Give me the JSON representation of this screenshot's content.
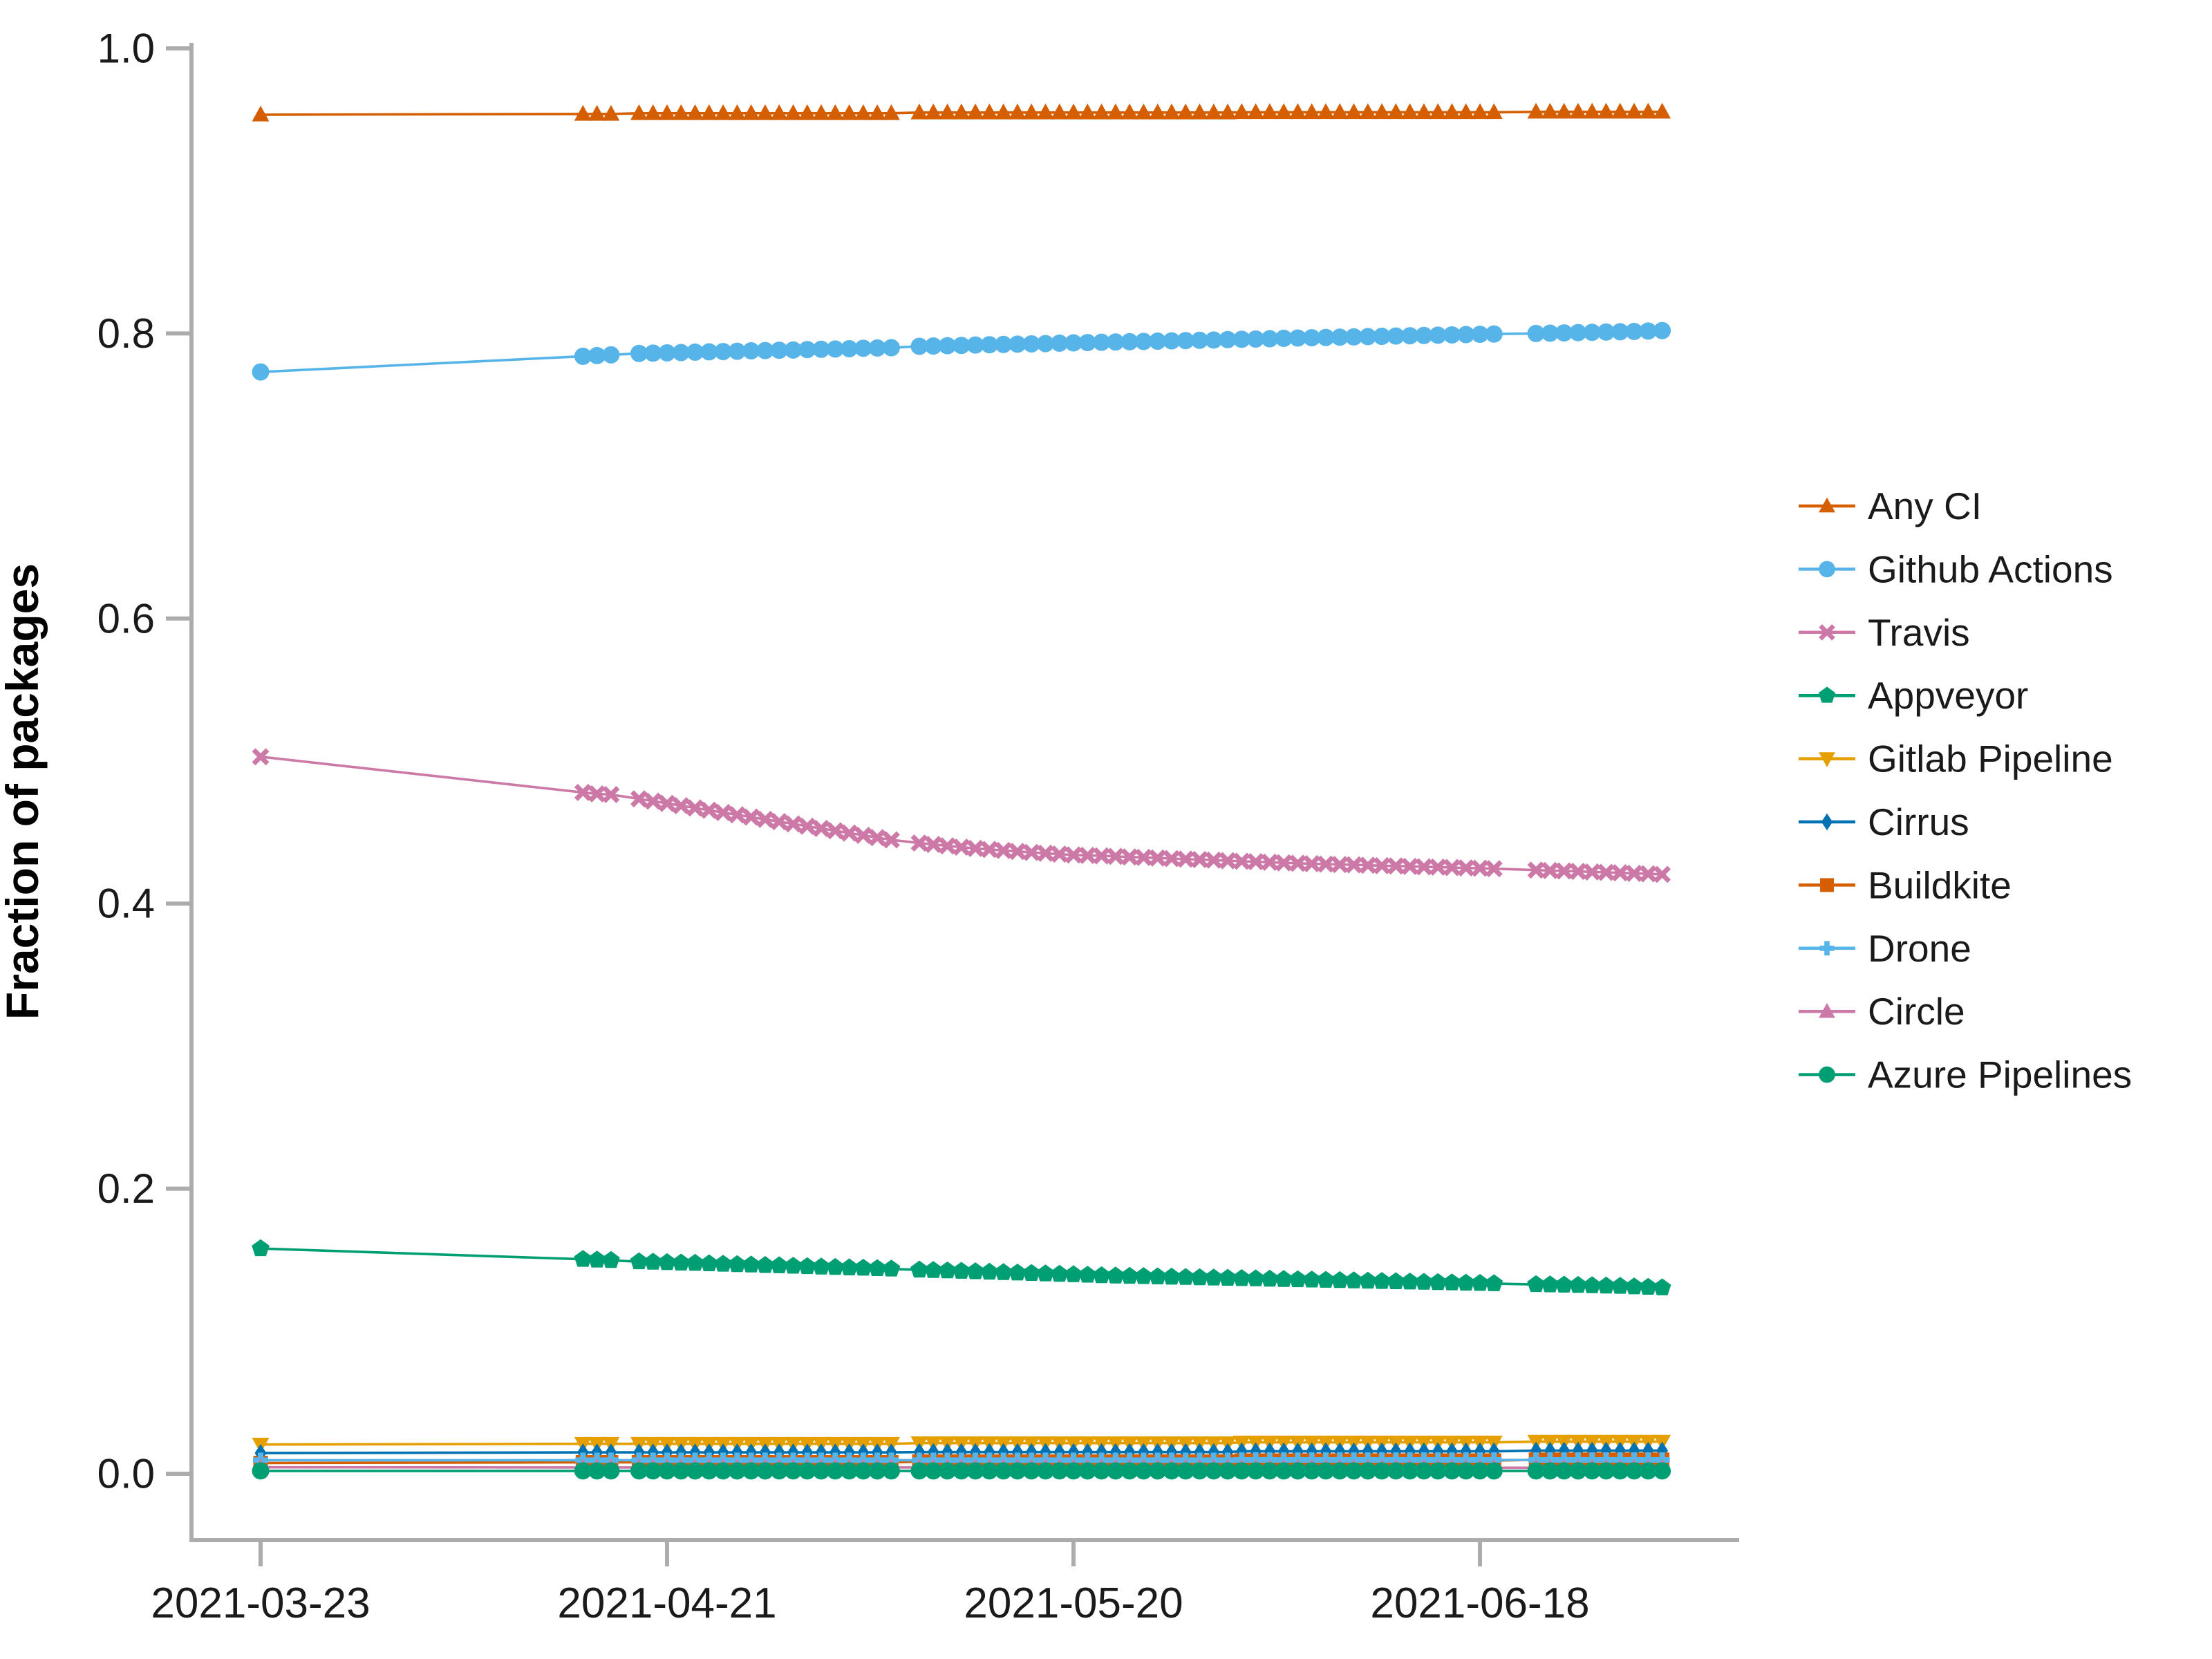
{
  "figure": {
    "background": "#ffffff",
    "axis_color": "#acacac",
    "text_color": "#1a1a1a"
  },
  "chart_data": {
    "type": "line",
    "title": "",
    "xlabel": "",
    "ylabel": "Fraction of packages",
    "ylim": [
      0.0,
      1.0
    ],
    "grid": false,
    "legend_position": "right",
    "yticks": [
      0.0,
      0.2,
      0.4,
      0.6,
      0.8,
      1.0
    ],
    "ytick_labels": [
      "0.0",
      "0.2",
      "0.4",
      "0.6",
      "0.8",
      "1.0"
    ],
    "xtick_dates": [
      "2021-03-23",
      "2021-04-21",
      "2021-05-20",
      "2021-06-18"
    ],
    "dates": [
      "2021-03-23",
      "2021-04-15",
      "2021-04-16",
      "2021-04-17",
      "2021-04-19",
      "2021-04-20",
      "2021-04-21",
      "2021-04-22",
      "2021-04-23",
      "2021-04-24",
      "2021-04-25",
      "2021-04-26",
      "2021-04-27",
      "2021-04-28",
      "2021-04-29",
      "2021-04-30",
      "2021-05-01",
      "2021-05-02",
      "2021-05-03",
      "2021-05-04",
      "2021-05-05",
      "2021-05-06",
      "2021-05-07",
      "2021-05-09",
      "2021-05-10",
      "2021-05-11",
      "2021-05-12",
      "2021-05-13",
      "2021-05-14",
      "2021-05-15",
      "2021-05-16",
      "2021-05-17",
      "2021-05-18",
      "2021-05-19",
      "2021-05-20",
      "2021-05-21",
      "2021-05-22",
      "2021-05-23",
      "2021-05-24",
      "2021-05-25",
      "2021-05-26",
      "2021-05-27",
      "2021-05-28",
      "2021-05-29",
      "2021-05-30",
      "2021-05-31",
      "2021-06-01",
      "2021-06-02",
      "2021-06-03",
      "2021-06-04",
      "2021-06-05",
      "2021-06-06",
      "2021-06-07",
      "2021-06-08",
      "2021-06-09",
      "2021-06-10",
      "2021-06-11",
      "2021-06-12",
      "2021-06-13",
      "2021-06-14",
      "2021-06-15",
      "2021-06-16",
      "2021-06-17",
      "2021-06-18",
      "2021-06-19",
      "2021-06-22",
      "2021-06-23",
      "2021-06-24",
      "2021-06-25",
      "2021-06-26",
      "2021-06-27",
      "2021-06-28",
      "2021-06-29",
      "2021-06-30",
      "2021-07-01"
    ],
    "series": [
      {
        "name": "Any CI",
        "color": "#D55E00",
        "marker": "triangle-up",
        "values": [
          0.9535,
          0.954,
          0.954,
          0.954,
          0.9545,
          0.9545,
          0.9545,
          0.9545,
          0.9545,
          0.9545,
          0.9545,
          0.9545,
          0.9545,
          0.9545,
          0.9545,
          0.9545,
          0.9545,
          0.9545,
          0.9545,
          0.9545,
          0.9545,
          0.9545,
          0.9545,
          0.955,
          0.955,
          0.955,
          0.955,
          0.955,
          0.955,
          0.955,
          0.955,
          0.955,
          0.955,
          0.955,
          0.955,
          0.955,
          0.955,
          0.955,
          0.955,
          0.955,
          0.955,
          0.955,
          0.955,
          0.955,
          0.955,
          0.955,
          0.9552,
          0.9552,
          0.9552,
          0.9552,
          0.9552,
          0.9552,
          0.9552,
          0.9552,
          0.9552,
          0.9552,
          0.9552,
          0.9552,
          0.9552,
          0.9552,
          0.9552,
          0.9552,
          0.9552,
          0.9552,
          0.9552,
          0.9555,
          0.9555,
          0.9555,
          0.9555,
          0.9555,
          0.9555,
          0.9555,
          0.9555,
          0.9555,
          0.9555
        ]
      },
      {
        "name": "Github Actions",
        "color": "#56B4E9",
        "marker": "circle",
        "values": [
          0.773,
          0.784,
          0.7845,
          0.785,
          0.786,
          0.7862,
          0.7864,
          0.7866,
          0.7869,
          0.7871,
          0.7873,
          0.7875,
          0.7878,
          0.788,
          0.7882,
          0.7884,
          0.7887,
          0.7889,
          0.7891,
          0.7893,
          0.7896,
          0.7898,
          0.79,
          0.791,
          0.7912,
          0.7914,
          0.7916,
          0.7919,
          0.7921,
          0.7923,
          0.7925,
          0.7927,
          0.7929,
          0.7932,
          0.7934,
          0.7936,
          0.7938,
          0.794,
          0.7942,
          0.7944,
          0.7946,
          0.7948,
          0.795,
          0.7952,
          0.7954,
          0.7957,
          0.7959,
          0.7961,
          0.7963,
          0.7966,
          0.7968,
          0.797,
          0.7972,
          0.7974,
          0.7976,
          0.7978,
          0.798,
          0.7982,
          0.7984,
          0.7986,
          0.7988,
          0.799,
          0.7992,
          0.7994,
          0.7996,
          0.8,
          0.8002,
          0.8004,
          0.8006,
          0.8008,
          0.801,
          0.8012,
          0.8014,
          0.8017,
          0.802
        ]
      },
      {
        "name": "Travis",
        "color": "#CC79A7",
        "marker": "x",
        "values": [
          0.503,
          0.478,
          0.477,
          0.4765,
          0.4735,
          0.4719,
          0.4703,
          0.4687,
          0.4671,
          0.4655,
          0.4639,
          0.4623,
          0.4607,
          0.4591,
          0.4575,
          0.4559,
          0.4543,
          0.4527,
          0.4511,
          0.4495,
          0.4479,
          0.4463,
          0.4447,
          0.4425,
          0.4415,
          0.4405,
          0.4396,
          0.4387,
          0.438,
          0.4373,
          0.4366,
          0.4359,
          0.4353,
          0.4347,
          0.4341,
          0.4338,
          0.4335,
          0.4331,
          0.4327,
          0.4324,
          0.432,
          0.4316,
          0.4312,
          0.4309,
          0.4305,
          0.4301,
          0.4297,
          0.4294,
          0.429,
          0.4286,
          0.4283,
          0.428,
          0.4277,
          0.4274,
          0.4272,
          0.4269,
          0.4266,
          0.4264,
          0.4261,
          0.4258,
          0.4256,
          0.4253,
          0.425,
          0.4248,
          0.4245,
          0.4235,
          0.4232,
          0.4229,
          0.4226,
          0.4222,
          0.4219,
          0.4216,
          0.4212,
          0.4209,
          0.4205
        ]
      },
      {
        "name": "Appveyor",
        "color": "#009E73",
        "marker": "pentagon",
        "values": [
          0.158,
          0.1505,
          0.15,
          0.1497,
          0.1488,
          0.1485,
          0.1482,
          0.1479,
          0.1477,
          0.1474,
          0.1471,
          0.1468,
          0.1465,
          0.1462,
          0.146,
          0.1457,
          0.1454,
          0.1451,
          0.1448,
          0.1445,
          0.1443,
          0.144,
          0.1437,
          0.143,
          0.1427,
          0.1424,
          0.1421,
          0.1418,
          0.1415,
          0.1412,
          0.1409,
          0.1406,
          0.1403,
          0.14,
          0.1397,
          0.1394,
          0.139,
          0.1388,
          0.1386,
          0.1384,
          0.1382,
          0.138,
          0.1378,
          0.1376,
          0.1374,
          0.1372,
          0.137,
          0.1368,
          0.1366,
          0.1364,
          0.1362,
          0.136,
          0.1358,
          0.1356,
          0.1354,
          0.1352,
          0.135,
          0.1348,
          0.1346,
          0.1344,
          0.1342,
          0.134,
          0.1338,
          0.1336,
          0.1334,
          0.1328,
          0.1326,
          0.1324,
          0.1322,
          0.132,
          0.1318,
          0.1316,
          0.1312,
          0.1309,
          0.1305
        ]
      },
      {
        "name": "Gitlab Pipeline",
        "color": "#E69F00",
        "marker": "triangle-down",
        "values": [
          0.0205,
          0.021,
          0.021,
          0.021,
          0.021,
          0.021,
          0.021,
          0.021,
          0.021,
          0.021,
          0.021,
          0.021,
          0.021,
          0.021,
          0.021,
          0.021,
          0.021,
          0.021,
          0.021,
          0.021,
          0.021,
          0.021,
          0.021,
          0.0215,
          0.0215,
          0.0215,
          0.0215,
          0.0215,
          0.0215,
          0.0215,
          0.0215,
          0.0215,
          0.0215,
          0.0215,
          0.0215,
          0.0215,
          0.0215,
          0.0215,
          0.0215,
          0.0215,
          0.0215,
          0.0215,
          0.0215,
          0.0215,
          0.0215,
          0.0215,
          0.022,
          0.022,
          0.022,
          0.022,
          0.022,
          0.022,
          0.022,
          0.022,
          0.022,
          0.022,
          0.022,
          0.022,
          0.022,
          0.022,
          0.022,
          0.022,
          0.022,
          0.022,
          0.022,
          0.0225,
          0.0225,
          0.0225,
          0.0225,
          0.0225,
          0.0225,
          0.0225,
          0.0225,
          0.0225,
          0.0225
        ]
      },
      {
        "name": "Cirrus",
        "color": "#0072B2",
        "marker": "diamond",
        "values": [
          0.0145,
          0.015,
          0.015,
          0.015,
          0.015,
          0.015,
          0.015,
          0.015,
          0.015,
          0.015,
          0.015,
          0.015,
          0.015,
          0.015,
          0.015,
          0.015,
          0.015,
          0.015,
          0.015,
          0.015,
          0.015,
          0.015,
          0.015,
          0.0152,
          0.0152,
          0.0152,
          0.0152,
          0.0152,
          0.0152,
          0.0152,
          0.0152,
          0.0152,
          0.0152,
          0.0152,
          0.0152,
          0.0152,
          0.0152,
          0.0152,
          0.0152,
          0.0152,
          0.0152,
          0.0152,
          0.0152,
          0.0152,
          0.0152,
          0.0152,
          0.0157,
          0.0157,
          0.0157,
          0.0157,
          0.0157,
          0.0157,
          0.0157,
          0.0157,
          0.0157,
          0.0157,
          0.0157,
          0.0157,
          0.0157,
          0.0157,
          0.0157,
          0.0157,
          0.0157,
          0.0157,
          0.0157,
          0.0162,
          0.0162,
          0.0162,
          0.0162,
          0.0162,
          0.0162,
          0.0162,
          0.0162,
          0.0162,
          0.0162
        ]
      },
      {
        "name": "Buildkite",
        "color": "#D55E00",
        "marker": "square",
        "values": [
          0.0075,
          0.008,
          0.008,
          0.008,
          0.008,
          0.008,
          0.008,
          0.008,
          0.008,
          0.008,
          0.008,
          0.008,
          0.008,
          0.008,
          0.008,
          0.008,
          0.008,
          0.008,
          0.008,
          0.008,
          0.008,
          0.008,
          0.008,
          0.0085,
          0.0085,
          0.0085,
          0.0085,
          0.0085,
          0.0085,
          0.0085,
          0.0085,
          0.0085,
          0.0085,
          0.0085,
          0.0085,
          0.0085,
          0.0085,
          0.0085,
          0.0085,
          0.0085,
          0.0085,
          0.0085,
          0.0085,
          0.0085,
          0.0085,
          0.0085,
          0.0092,
          0.0092,
          0.0092,
          0.0092,
          0.0092,
          0.0092,
          0.0092,
          0.0092,
          0.0092,
          0.0092,
          0.0092,
          0.0092,
          0.0092,
          0.0092,
          0.0092,
          0.0092,
          0.0092,
          0.0092,
          0.0092,
          0.0098,
          0.0098,
          0.0098,
          0.0098,
          0.0098,
          0.0098,
          0.0098,
          0.0098,
          0.0098,
          0.0098
        ]
      },
      {
        "name": "Drone",
        "color": "#56B4E9",
        "marker": "plus",
        "values": [
          0.0095,
          0.0095,
          0.0095,
          0.0095,
          0.0095,
          0.0095,
          0.0095,
          0.0095,
          0.0095,
          0.0095,
          0.0095,
          0.0095,
          0.0095,
          0.0095,
          0.0095,
          0.0095,
          0.0095,
          0.0095,
          0.0095,
          0.0095,
          0.0095,
          0.0095,
          0.0095,
          0.0095,
          0.0095,
          0.0095,
          0.0095,
          0.0095,
          0.0095,
          0.0095,
          0.0095,
          0.0095,
          0.0095,
          0.0095,
          0.0095,
          0.0095,
          0.0095,
          0.0095,
          0.0095,
          0.0095,
          0.0095,
          0.0095,
          0.0095,
          0.0095,
          0.0095,
          0.0095,
          0.0097,
          0.0097,
          0.0097,
          0.0097,
          0.0097,
          0.0097,
          0.0097,
          0.0097,
          0.0097,
          0.0097,
          0.0097,
          0.0097,
          0.0097,
          0.0097,
          0.0097,
          0.0097,
          0.0097,
          0.0097,
          0.0097,
          0.0097,
          0.0097,
          0.0097,
          0.0097,
          0.0097,
          0.0097,
          0.0097,
          0.0097,
          0.0097,
          0.0097
        ]
      },
      {
        "name": "Circle",
        "color": "#CC79A7",
        "marker": "triangle-up",
        "values": [
          0.0045,
          0.0044,
          0.0044,
          0.0044,
          0.0044,
          0.0044,
          0.0044,
          0.0044,
          0.0044,
          0.0044,
          0.0044,
          0.0044,
          0.0044,
          0.0044,
          0.0044,
          0.0044,
          0.0044,
          0.0044,
          0.0044,
          0.0044,
          0.0044,
          0.0044,
          0.0044,
          0.0044,
          0.0044,
          0.0044,
          0.0044,
          0.0044,
          0.0044,
          0.0044,
          0.0044,
          0.0044,
          0.0044,
          0.0044,
          0.0044,
          0.0044,
          0.0044,
          0.0044,
          0.0044,
          0.0044,
          0.0044,
          0.0044,
          0.0044,
          0.0044,
          0.0044,
          0.0044,
          0.0042,
          0.0042,
          0.0042,
          0.0042,
          0.0042,
          0.0042,
          0.0042,
          0.0042,
          0.0042,
          0.0042,
          0.0042,
          0.0042,
          0.0042,
          0.0042,
          0.0042,
          0.0042,
          0.0042,
          0.0042,
          0.0042,
          0.0042,
          0.0042,
          0.0042,
          0.0042,
          0.0042,
          0.0042,
          0.0042,
          0.0042,
          0.0042,
          0.0042
        ]
      },
      {
        "name": "Azure Pipelines",
        "color": "#009E73",
        "marker": "circle",
        "values": [
          0.002,
          0.002,
          0.002,
          0.002,
          0.002,
          0.002,
          0.002,
          0.002,
          0.002,
          0.002,
          0.002,
          0.002,
          0.002,
          0.002,
          0.002,
          0.002,
          0.002,
          0.002,
          0.002,
          0.002,
          0.002,
          0.002,
          0.002,
          0.002,
          0.002,
          0.002,
          0.002,
          0.002,
          0.002,
          0.002,
          0.002,
          0.002,
          0.002,
          0.002,
          0.002,
          0.002,
          0.002,
          0.002,
          0.002,
          0.002,
          0.002,
          0.002,
          0.002,
          0.002,
          0.002,
          0.002,
          0.002,
          0.002,
          0.002,
          0.002,
          0.002,
          0.002,
          0.002,
          0.002,
          0.002,
          0.002,
          0.002,
          0.002,
          0.002,
          0.002,
          0.002,
          0.002,
          0.002,
          0.002,
          0.002,
          0.002,
          0.002,
          0.002,
          0.002,
          0.002,
          0.002,
          0.002,
          0.002,
          0.002,
          0.002
        ]
      }
    ]
  }
}
